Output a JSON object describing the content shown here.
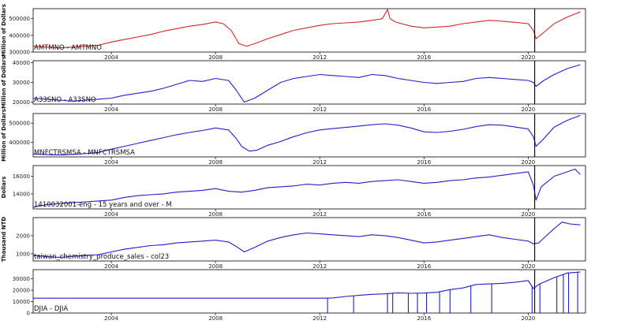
{
  "chart_data": [
    {
      "type": "line",
      "ylabel": "Million of Dollars",
      "label": "AMTMNO - AMTMNO",
      "color": "#d62728",
      "ylim": [
        300000,
        560000
      ],
      "yticks": [
        300000,
        400000,
        500000
      ],
      "x": [
        2001.0,
        2001.5,
        2002.0,
        2002.5,
        2003.0,
        2003.5,
        2004.0,
        2004.5,
        2005.0,
        2005.5,
        2006.0,
        2006.5,
        2007.0,
        2007.5,
        2008.0,
        2008.3,
        2008.6,
        2008.9,
        2009.2,
        2009.5,
        2010.0,
        2010.5,
        2011.0,
        2011.5,
        2012.0,
        2012.5,
        2013.0,
        2013.5,
        2014.0,
        2014.4,
        2014.6,
        2014.7,
        2014.9,
        2015.5,
        2016.0,
        2016.5,
        2017.0,
        2017.5,
        2018.0,
        2018.5,
        2019.0,
        2019.5,
        2020.0,
        2020.2,
        2020.3,
        2020.5,
        2021.0,
        2021.5,
        2022.0
      ],
      "values": [
        335000,
        330000,
        325000,
        330000,
        335000,
        340000,
        360000,
        375000,
        390000,
        405000,
        425000,
        440000,
        455000,
        465000,
        480000,
        470000,
        430000,
        350000,
        335000,
        350000,
        380000,
        405000,
        430000,
        445000,
        460000,
        470000,
        475000,
        480000,
        490000,
        500000,
        555000,
        500000,
        480000,
        455000,
        445000,
        450000,
        455000,
        470000,
        480000,
        490000,
        485000,
        478000,
        470000,
        430000,
        380000,
        405000,
        470000,
        510000,
        540000
      ]
    },
    {
      "type": "line",
      "ylabel": "Million of Dollars",
      "label": "A33SNO - A33SNO",
      "color": "#2020cc",
      "ylim": [
        19000,
        41000
      ],
      "yticks": [
        20000,
        30000,
        40000
      ],
      "x": [
        2001.0,
        2001.5,
        2002.0,
        2002.5,
        2003.0,
        2003.5,
        2004.0,
        2004.5,
        2005.0,
        2005.5,
        2006.0,
        2006.5,
        2007.0,
        2007.5,
        2008.0,
        2008.5,
        2008.8,
        2009.1,
        2009.5,
        2010.0,
        2010.5,
        2011.0,
        2011.5,
        2012.0,
        2012.5,
        2013.0,
        2013.5,
        2014.0,
        2014.5,
        2015.0,
        2015.5,
        2016.0,
        2016.5,
        2017.0,
        2017.5,
        2018.0,
        2018.5,
        2019.0,
        2019.5,
        2020.0,
        2020.2,
        2020.3,
        2020.6,
        2021.0,
        2021.5,
        2022.0
      ],
      "values": [
        22000,
        21500,
        21000,
        20500,
        21000,
        21500,
        22000,
        23500,
        24500,
        25500,
        27000,
        29000,
        31000,
        30500,
        32000,
        31000,
        26000,
        20000,
        22000,
        26000,
        30000,
        32000,
        33000,
        34000,
        33500,
        33000,
        32500,
        34000,
        33500,
        32000,
        31000,
        30000,
        29500,
        30000,
        30500,
        32000,
        32500,
        32000,
        31500,
        31000,
        30000,
        28000,
        31000,
        34000,
        37000,
        39000
      ]
    },
    {
      "type": "line",
      "ylabel": "Million of Dollars",
      "label": "MNFCTRSMSA - MNFCTRSMSA",
      "color": "#2020cc",
      "ylim": [
        325000,
        550000
      ],
      "yticks": [
        400000,
        500000
      ],
      "x": [
        2001.0,
        2001.5,
        2002.0,
        2002.5,
        2003.0,
        2003.5,
        2004.0,
        2004.5,
        2005.0,
        2005.5,
        2006.0,
        2006.5,
        2007.0,
        2007.5,
        2008.0,
        2008.5,
        2008.8,
        2009.0,
        2009.3,
        2009.6,
        2010.0,
        2010.5,
        2011.0,
        2011.5,
        2012.0,
        2012.5,
        2013.0,
        2013.5,
        2014.0,
        2014.5,
        2015.0,
        2015.5,
        2016.0,
        2016.5,
        2017.0,
        2017.5,
        2018.0,
        2018.5,
        2019.0,
        2019.5,
        2020.0,
        2020.2,
        2020.3,
        2020.6,
        2021.0,
        2021.5,
        2022.0
      ],
      "values": [
        340000,
        337000,
        335000,
        338000,
        342000,
        348000,
        365000,
        380000,
        395000,
        410000,
        425000,
        440000,
        452000,
        462000,
        475000,
        465000,
        420000,
        380000,
        355000,
        360000,
        385000,
        405000,
        430000,
        450000,
        465000,
        472000,
        478000,
        485000,
        492000,
        497000,
        490000,
        475000,
        455000,
        452000,
        458000,
        468000,
        482000,
        492000,
        490000,
        480000,
        470000,
        430000,
        380000,
        420000,
        480000,
        515000,
        540000
      ]
    },
    {
      "type": "line",
      "ylabel": "Dollars",
      "label": "1410032001-eng - 15 years and over - M",
      "color": "#2020cc",
      "ylim": [
        12300,
        17200
      ],
      "yticks": [
        14000,
        16000
      ],
      "x": [
        2001.0,
        2001.5,
        2002.0,
        2002.5,
        2003.0,
        2003.5,
        2004.0,
        2004.5,
        2005.0,
        2005.5,
        2006.0,
        2006.5,
        2007.0,
        2007.5,
        2008.0,
        2008.5,
        2009.0,
        2009.5,
        2010.0,
        2010.5,
        2011.0,
        2011.5,
        2012.0,
        2012.5,
        2013.0,
        2013.5,
        2014.0,
        2014.5,
        2015.0,
        2015.5,
        2016.0,
        2016.5,
        2017.0,
        2017.5,
        2018.0,
        2018.5,
        2019.0,
        2019.5,
        2020.0,
        2020.2,
        2020.3,
        2020.5,
        2021.0,
        2021.5,
        2021.8,
        2022.0
      ],
      "values": [
        12500,
        12800,
        12900,
        13000,
        13100,
        13200,
        13300,
        13600,
        13800,
        13900,
        14000,
        14200,
        14300,
        14400,
        14600,
        14300,
        14200,
        14400,
        14700,
        14800,
        14900,
        15100,
        15000,
        15200,
        15300,
        15200,
        15400,
        15500,
        15600,
        15400,
        15200,
        15300,
        15500,
        15600,
        15800,
        15900,
        16100,
        16300,
        16500,
        15000,
        13300,
        14800,
        16000,
        16500,
        16800,
        16200
      ]
    },
    {
      "type": "line",
      "ylabel": "Thousand NTD",
      "label": "taiwan_chemistry_produce_sales - col23",
      "color": "#2020cc",
      "ylim": [
        600,
        3000
      ],
      "yticks": [
        1000,
        2000
      ],
      "x": [
        2001.0,
        2001.5,
        2002.0,
        2002.5,
        2003.0,
        2003.5,
        2004.0,
        2004.5,
        2005.0,
        2005.5,
        2006.0,
        2006.5,
        2007.0,
        2007.5,
        2008.0,
        2008.5,
        2008.8,
        2009.1,
        2009.5,
        2010.0,
        2010.5,
        2011.0,
        2011.5,
        2012.0,
        2012.5,
        2013.0,
        2013.5,
        2014.0,
        2014.5,
        2015.0,
        2015.5,
        2016.0,
        2016.5,
        2017.0,
        2017.5,
        2018.0,
        2018.5,
        2019.0,
        2019.5,
        2020.0,
        2020.2,
        2020.4,
        2020.7,
        2021.0,
        2021.3,
        2021.6,
        2022.0
      ],
      "values": [
        900,
        850,
        800,
        850,
        900,
        950,
        1100,
        1250,
        1350,
        1450,
        1500,
        1600,
        1650,
        1700,
        1750,
        1650,
        1400,
        1100,
        1350,
        1700,
        1900,
        2050,
        2150,
        2100,
        2050,
        2000,
        1950,
        2050,
        2000,
        1900,
        1750,
        1600,
        1650,
        1750,
        1850,
        1950,
        2050,
        1900,
        1800,
        1700,
        1550,
        1600,
        2000,
        2400,
        2750,
        2650,
        2600
      ]
    },
    {
      "type": "line",
      "label": "DJIA - DJIA",
      "color": "#2020cc",
      "ylim": [
        0,
        38000
      ],
      "yticks": [
        0,
        10000,
        20000,
        30000
      ],
      "x": [
        2001.0,
        2012.1,
        2012.5,
        2013.0,
        2013.5,
        2014.0,
        2014.5,
        2015.0,
        2015.5,
        2016.0,
        2016.5,
        2017.0,
        2017.5,
        2018.0,
        2018.5,
        2019.0,
        2019.5,
        2020.0,
        2020.2,
        2020.4,
        2020.8,
        2021.0,
        2021.5,
        2022.0
      ],
      "values": [
        13000,
        13000,
        13200,
        14500,
        15500,
        16400,
        16800,
        17700,
        17300,
        17500,
        18200,
        20500,
        22000,
        25000,
        25500,
        26000,
        27000,
        28500,
        21500,
        25000,
        29000,
        31000,
        35000,
        36000
      ],
      "dropouts": [
        2012.3,
        2013.3,
        2014.6,
        2014.8,
        2015.4,
        2015.75,
        2016.1,
        2016.6,
        2017.0,
        2017.8,
        2018.6,
        2020.15,
        2020.45,
        2021.1,
        2021.35,
        2021.55,
        2021.9
      ]
    }
  ],
  "shared_x": {
    "xlim": [
      2001.0,
      2022.2
    ],
    "xticks": [
      "2004",
      "2008",
      "2012",
      "2016",
      "2020"
    ],
    "xtick_values": [
      2004,
      2008,
      2012,
      2016,
      2020
    ],
    "vline_x": 2020.25
  }
}
